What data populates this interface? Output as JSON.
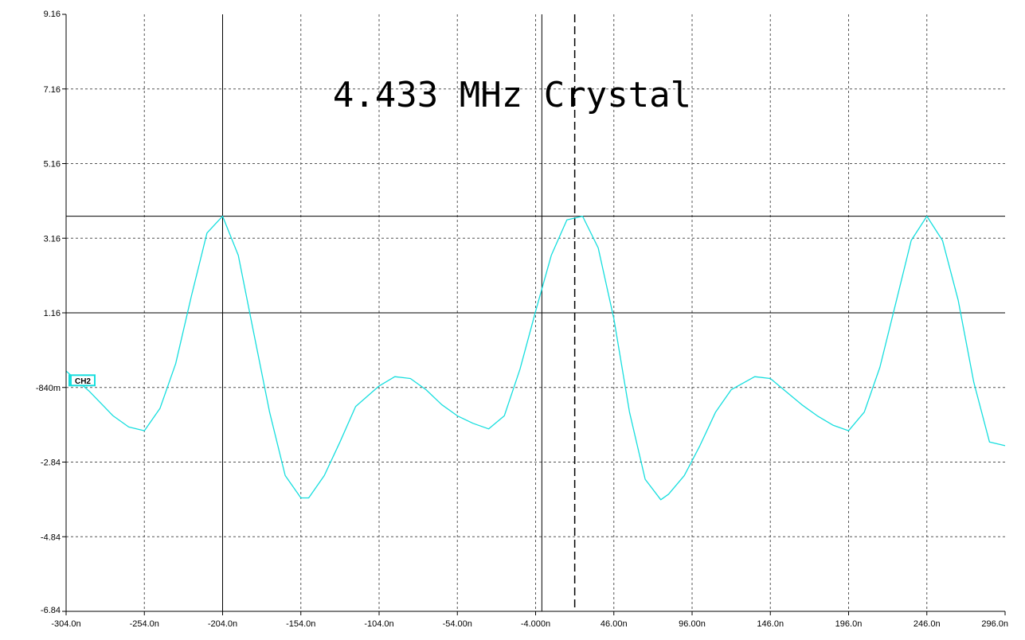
{
  "chart_data": {
    "type": "line",
    "title": "4.433 MHz Crystal",
    "xlabel": "",
    "ylabel": "",
    "x_unit": "s",
    "y_unit": "V",
    "xlim": [
      -3.04e-07,
      2.96e-07
    ],
    "ylim": [
      -6.84,
      9.16
    ],
    "x_ticks": [
      {
        "value": -3.04e-07,
        "label": "-304.0n"
      },
      {
        "value": -2.54e-07,
        "label": "-254.0n"
      },
      {
        "value": -2.04e-07,
        "label": "-204.0n"
      },
      {
        "value": -1.54e-07,
        "label": "-154.0n"
      },
      {
        "value": -1.04e-07,
        "label": "-104.0n"
      },
      {
        "value": -5.4e-08,
        "label": "-54.00n"
      },
      {
        "value": -4e-09,
        "label": "-4.000n"
      },
      {
        "value": 4.6e-08,
        "label": "46.00n"
      },
      {
        "value": 9.6e-08,
        "label": "96.00n"
      },
      {
        "value": 1.46e-07,
        "label": "146.0n"
      },
      {
        "value": 1.96e-07,
        "label": "196.0n"
      },
      {
        "value": 2.46e-07,
        "label": "246.0n"
      },
      {
        "value": 2.96e-07,
        "label": "296.0n"
      }
    ],
    "y_ticks": [
      {
        "value": 9.16,
        "label": "9.16"
      },
      {
        "value": 7.16,
        "label": "7.16"
      },
      {
        "value": 5.16,
        "label": "5.16"
      },
      {
        "value": 3.16,
        "label": "3.16"
      },
      {
        "value": 1.16,
        "label": "1.16"
      },
      {
        "value": -0.84,
        "label": "-840m"
      },
      {
        "value": -2.84,
        "label": "-2.84"
      },
      {
        "value": -4.84,
        "label": "-4.84"
      },
      {
        "value": -6.84,
        "label": "-6.84"
      }
    ],
    "grid": true,
    "series": [
      {
        "name": "CH2",
        "color": "#16dede",
        "x": [
          -3.04e-07,
          -2.89e-07,
          -2.74e-07,
          -2.64e-07,
          -2.54e-07,
          -2.44e-07,
          -2.34e-07,
          -2.24e-07,
          -2.14e-07,
          -2.04e-07,
          -1.94e-07,
          -1.84e-07,
          -1.74e-07,
          -1.64e-07,
          -1.54e-07,
          -1.49e-07,
          -1.39e-07,
          -1.29e-07,
          -1.19e-07,
          -1.04e-07,
          -9.4e-08,
          -8.4e-08,
          -7.4e-08,
          -6.4e-08,
          -5.4e-08,
          -4.4e-08,
          -3.4e-08,
          -2.4e-08,
          -1.4e-08,
          -4e-09,
          6e-09,
          1.6e-08,
          2.6e-08,
          3.6e-08,
          4.6e-08,
          5.6e-08,
          6.6e-08,
          7.6e-08,
          8.1e-08,
          9.1e-08,
          1.01e-07,
          1.11e-07,
          1.21e-07,
          1.36e-07,
          1.46e-07,
          1.56e-07,
          1.66e-07,
          1.76e-07,
          1.86e-07,
          1.96e-07,
          2.06e-07,
          2.16e-07,
          2.26e-07,
          2.36e-07,
          2.46e-07,
          2.56e-07,
          2.66e-07,
          2.76e-07,
          2.86e-07,
          2.96e-07
        ],
        "values": [
          -0.4,
          -0.95,
          -1.6,
          -1.9,
          -2.0,
          -1.4,
          -0.2,
          1.6,
          3.3,
          3.75,
          2.7,
          0.6,
          -1.5,
          -3.2,
          -3.8,
          -3.8,
          -3.2,
          -2.3,
          -1.35,
          -0.8,
          -0.55,
          -0.6,
          -0.9,
          -1.3,
          -1.6,
          -1.8,
          -1.95,
          -1.6,
          -0.35,
          1.2,
          2.7,
          3.65,
          3.75,
          2.9,
          1.0,
          -1.5,
          -3.3,
          -3.85,
          -3.7,
          -3.2,
          -2.4,
          -1.5,
          -0.9,
          -0.55,
          -0.6,
          -0.95,
          -1.3,
          -1.6,
          -1.85,
          -2.0,
          -1.5,
          -0.3,
          1.4,
          3.1,
          3.75,
          3.1,
          1.5,
          -0.7,
          -2.3,
          -2.4
        ]
      }
    ],
    "cursors": {
      "x": [
        -2.04e-07,
        0
      ],
      "y": [
        3.75,
        1.16
      ]
    },
    "reference_line": {
      "x": 2.1e-08,
      "style": "dashed"
    },
    "channel_marker": {
      "label": "CH2",
      "value": -0.66
    }
  }
}
